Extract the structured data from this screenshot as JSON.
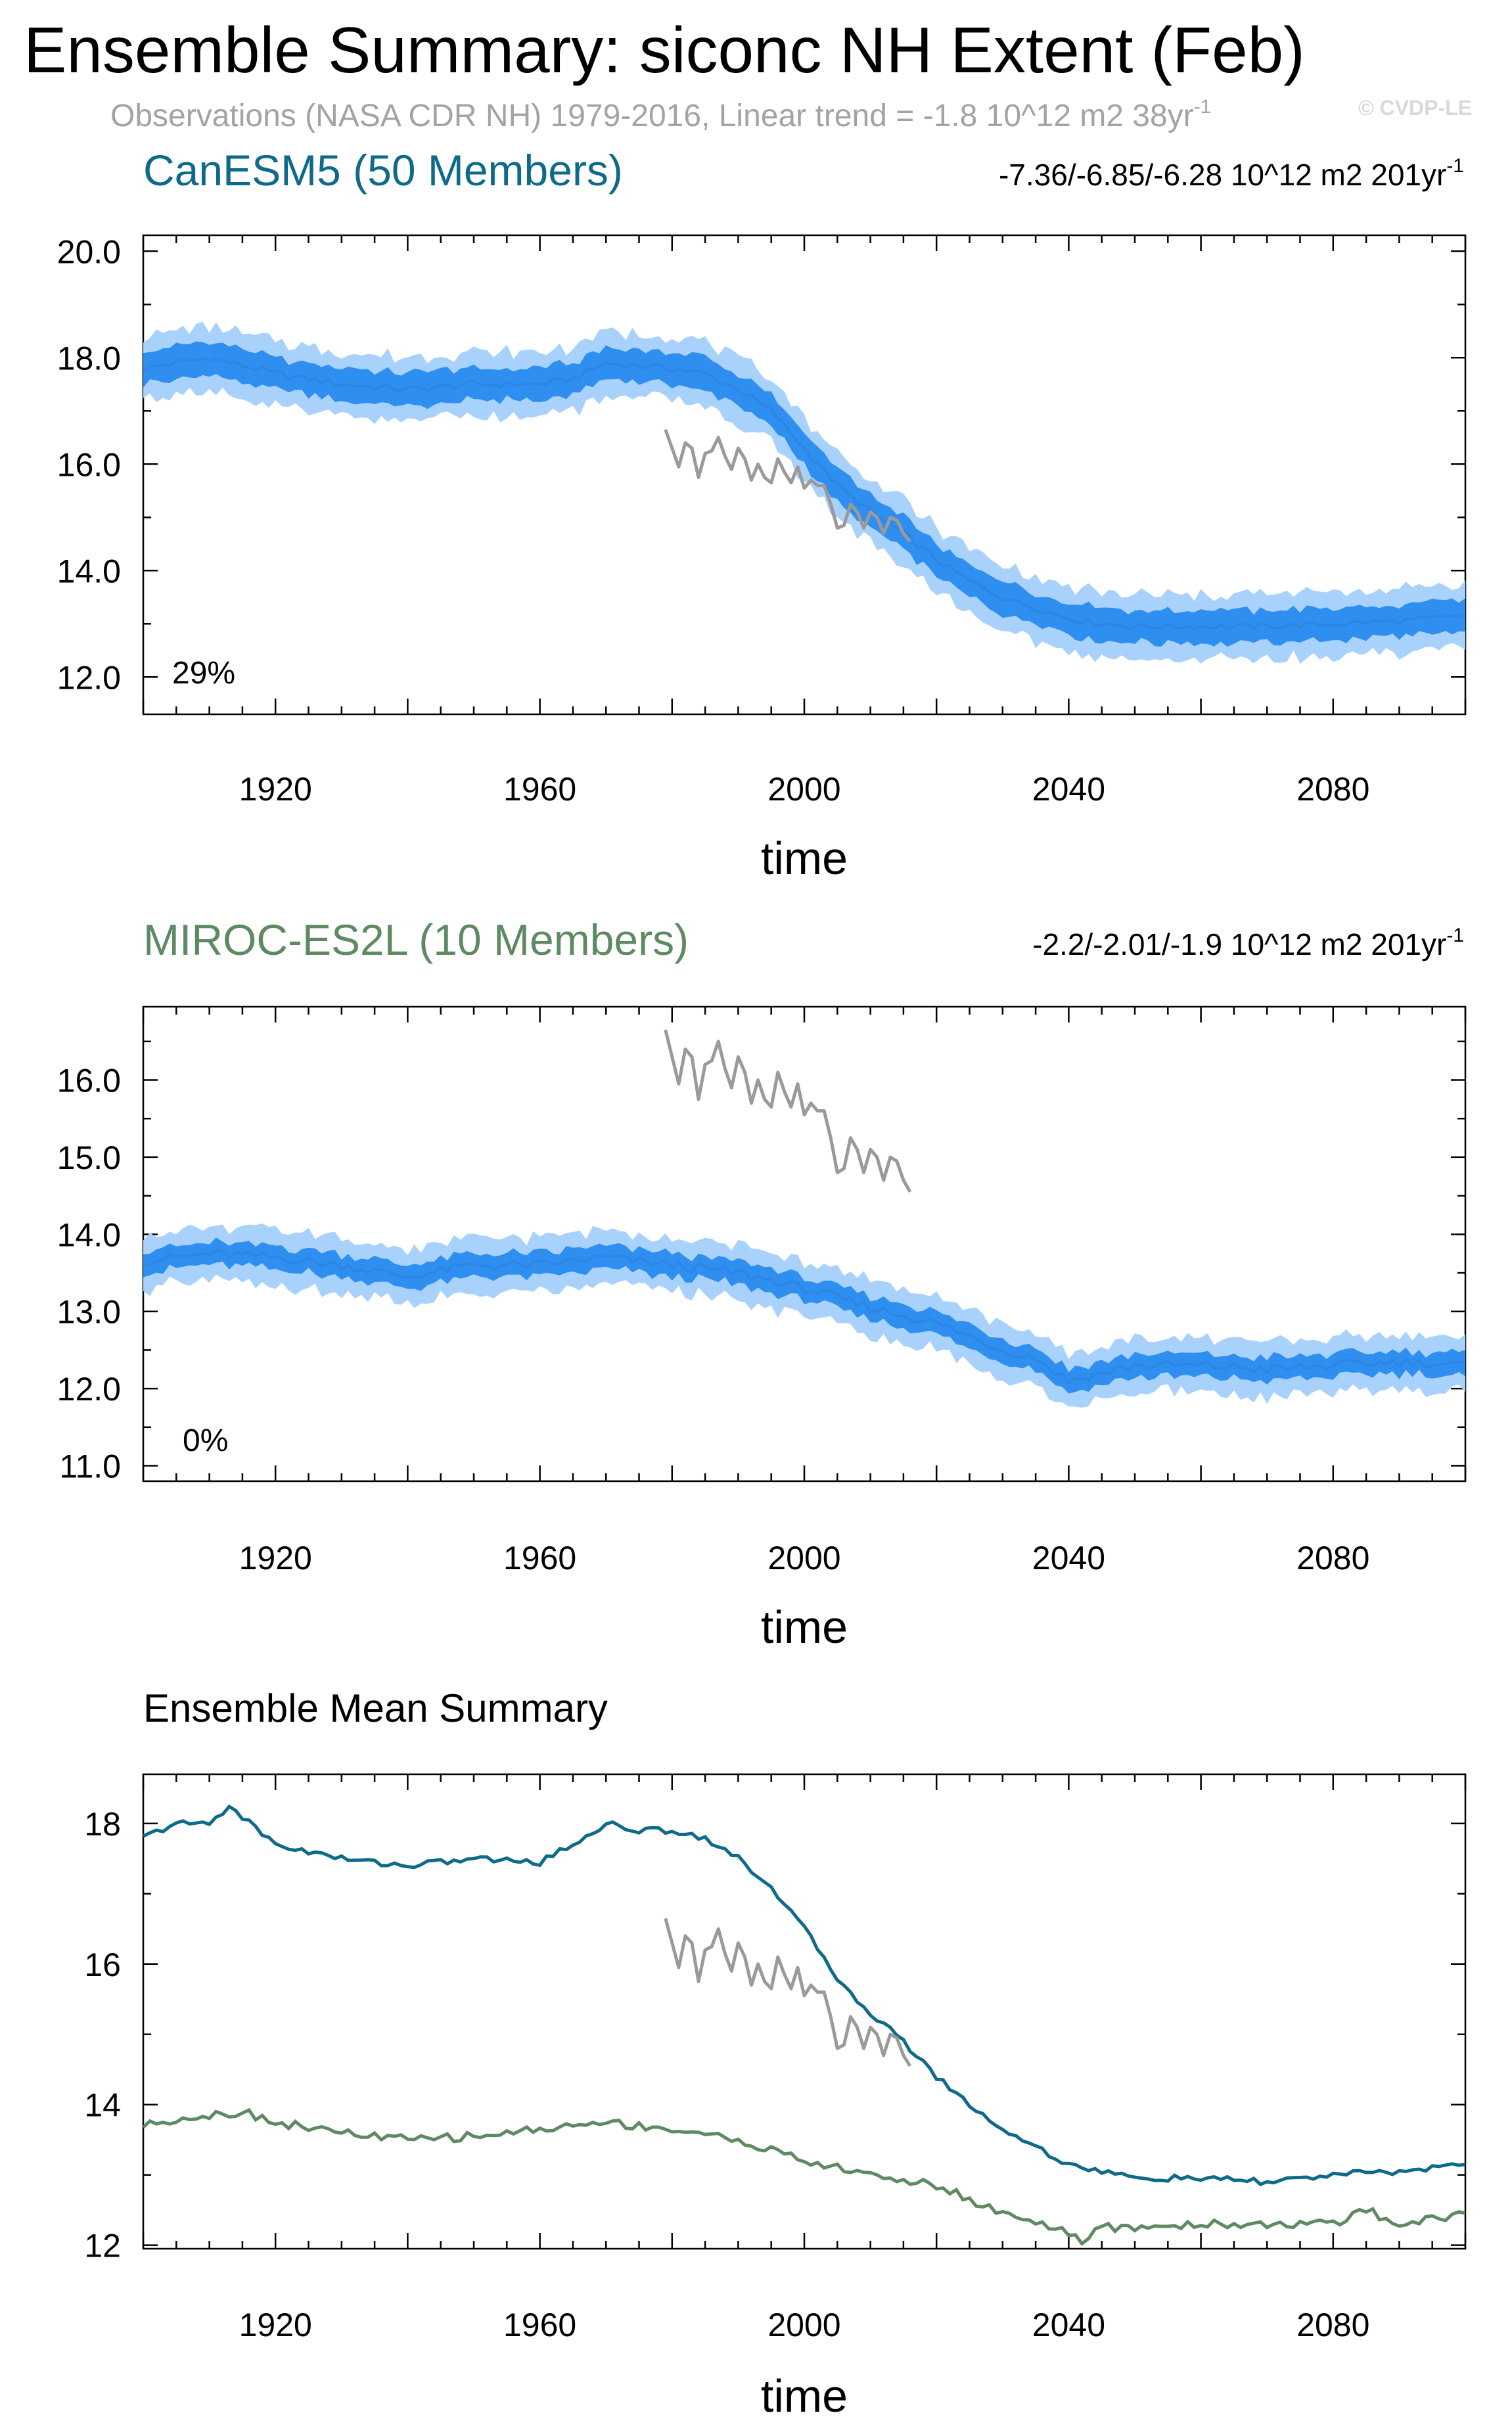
{
  "title": "Ensemble Summary: siconc NH Extent (Feb)",
  "subtitle": "Observations (NASA CDR NH) 1979-2016, Linear trend = -1.8 10^12 m2 38yr",
  "subtitle_sup": "-1",
  "watermark": "© CVDP-LE",
  "colors": {
    "canesm": "#0e6a8a",
    "miroc": "#5e8a62",
    "observations": "#9a9a9a",
    "band_outer": "#a8d2fb",
    "band_inner": "#2f8ff0",
    "ensemble_mean_line": "#2c86e6"
  },
  "panels": [
    {
      "header_left": "CanESM5 (50 Members)",
      "header_right": "-7.36/-6.85/-6.28 10^12 m2 201yr",
      "header_right_sup": "-1",
      "percent_label": "29%",
      "xlabel": "time"
    },
    {
      "header_left": "MIROC-ES2L (10 Members)",
      "header_right": "-2.2/-2.01/-1.9 10^12 m2 201yr",
      "header_right_sup": "-1",
      "percent_label": "0%",
      "xlabel": "time"
    },
    {
      "header_left": "Ensemble Mean Summary",
      "xlabel": "time"
    }
  ],
  "chart_data": [
    {
      "type": "line",
      "title": "CanESM5 (50 Members)",
      "xlabel": "time",
      "ylabel": "",
      "xlim": [
        1900,
        2100
      ],
      "ylim": [
        11.3,
        20.3
      ],
      "xticks": [
        1920,
        1960,
        2000,
        2040,
        2080
      ],
      "yticks": [
        12.0,
        14.0,
        16.0,
        18.0,
        20.0
      ],
      "ytick_labels": [
        "12.0",
        "14.0",
        "16.0",
        "18.0",
        "20.0"
      ],
      "grid": false,
      "series": [
        {
          "role": "ensemble_mean",
          "x": [
            1900,
            1910,
            1920,
            1930,
            1940,
            1950,
            1960,
            1965,
            1970,
            1980,
            1985,
            1990,
            1995,
            2000,
            2005,
            2010,
            2015,
            2020,
            2025,
            2030,
            2035,
            2040,
            2045,
            2050,
            2060,
            2070,
            2080,
            2090,
            2100
          ],
          "y": [
            17.8,
            18.0,
            17.7,
            17.5,
            17.4,
            17.5,
            17.5,
            17.6,
            17.9,
            17.8,
            17.7,
            17.4,
            17.0,
            16.3,
            15.6,
            15.1,
            14.7,
            14.2,
            13.8,
            13.5,
            13.3,
            13.1,
            13.0,
            12.95,
            12.95,
            12.95,
            13.0,
            13.05,
            13.15
          ],
          "spread_inner": 0.3,
          "spread_outer": 0.6
        },
        {
          "name": "Observations (NASA CDR NH)",
          "role": "observations",
          "x": [
            1979,
            1980,
            1981,
            1982,
            1983,
            1984,
            1985,
            1986,
            1987,
            1988,
            1989,
            1990,
            1991,
            1992,
            1993,
            1994,
            1995,
            1996,
            1997,
            1998,
            1999,
            2000,
            2001,
            2002,
            2003,
            2004,
            2005,
            2006,
            2007,
            2008,
            2009,
            2010,
            2011,
            2012,
            2013,
            2014,
            2015,
            2016
          ],
          "y": [
            16.65,
            16.3,
            15.95,
            16.4,
            16.3,
            15.75,
            16.2,
            16.25,
            16.5,
            16.15,
            15.9,
            16.3,
            16.1,
            15.7,
            16.0,
            15.75,
            15.65,
            16.1,
            15.85,
            15.65,
            15.95,
            15.55,
            15.7,
            15.6,
            15.6,
            15.25,
            14.8,
            14.85,
            15.25,
            15.1,
            14.8,
            15.1,
            15.0,
            14.7,
            15.0,
            14.95,
            14.7,
            14.55
          ]
        }
      ]
    },
    {
      "type": "line",
      "title": "MIROC-ES2L (10 Members)",
      "xlabel": "time",
      "ylabel": "",
      "xlim": [
        1900,
        2100
      ],
      "ylim": [
        10.8,
        16.95
      ],
      "xticks": [
        1920,
        1960,
        2000,
        2040,
        2080
      ],
      "yticks": [
        11.0,
        12.0,
        13.0,
        14.0,
        15.0,
        16.0
      ],
      "ytick_labels": [
        "11.0",
        "12.0",
        "13.0",
        "14.0",
        "15.0",
        "16.0"
      ],
      "grid": false,
      "series": [
        {
          "role": "ensemble_mean",
          "x": [
            1900,
            1910,
            1920,
            1930,
            1940,
            1950,
            1960,
            1970,
            1980,
            1990,
            2000,
            2010,
            2020,
            2030,
            2035,
            2040,
            2045,
            2050,
            2060,
            2070,
            2080,
            2090,
            2100
          ],
          "y": [
            13.65,
            13.75,
            13.7,
            13.6,
            13.45,
            13.6,
            13.6,
            13.7,
            13.6,
            13.5,
            13.3,
            13.05,
            12.85,
            12.5,
            12.4,
            12.1,
            12.2,
            12.3,
            12.3,
            12.25,
            12.3,
            12.35,
            12.3
          ],
          "spread_inner": 0.15,
          "spread_outer": 0.35
        },
        {
          "name": "Observations (NASA CDR NH)",
          "role": "observations",
          "x": [
            1979,
            1980,
            1981,
            1982,
            1983,
            1984,
            1985,
            1986,
            1987,
            1988,
            1989,
            1990,
            1991,
            1992,
            1993,
            1994,
            1995,
            1996,
            1997,
            1998,
            1999,
            2000,
            2001,
            2002,
            2003,
            2004,
            2005,
            2006,
            2007,
            2008,
            2009,
            2010,
            2011,
            2012,
            2013,
            2014,
            2015,
            2016
          ],
          "y": [
            16.65,
            16.3,
            15.95,
            16.4,
            16.3,
            15.75,
            16.2,
            16.25,
            16.5,
            16.15,
            15.9,
            16.3,
            16.1,
            15.7,
            16.0,
            15.75,
            15.65,
            16.1,
            15.85,
            15.65,
            15.95,
            15.55,
            15.7,
            15.6,
            15.6,
            15.25,
            14.8,
            14.85,
            15.25,
            15.1,
            14.8,
            15.1,
            15.0,
            14.7,
            15.0,
            14.95,
            14.7,
            14.55
          ]
        }
      ]
    },
    {
      "type": "line",
      "title": "Ensemble Mean Summary",
      "xlabel": "time",
      "ylabel": "",
      "xlim": [
        1900,
        2100
      ],
      "ylim": [
        11.95,
        18.7
      ],
      "xticks": [
        1920,
        1960,
        2000,
        2040,
        2080
      ],
      "yticks": [
        12,
        14,
        16,
        18
      ],
      "ytick_labels": [
        "12",
        "14",
        "16",
        "18"
      ],
      "grid": false,
      "series": [
        {
          "role": "canesm_mean",
          "x": [
            1900,
            1905,
            1910,
            1913,
            1920,
            1930,
            1940,
            1950,
            1960,
            1965,
            1970,
            1975,
            1980,
            1985,
            1990,
            1995,
            2000,
            2005,
            2010,
            2015,
            2020,
            2025,
            2030,
            2035,
            2040,
            2045,
            2050,
            2060,
            2070,
            2080,
            2090,
            2100
          ],
          "y": [
            17.8,
            18.0,
            18.0,
            18.25,
            17.7,
            17.5,
            17.4,
            17.5,
            17.45,
            17.7,
            18.0,
            17.9,
            17.9,
            17.8,
            17.5,
            17.1,
            16.5,
            15.8,
            15.3,
            14.9,
            14.4,
            14.0,
            13.65,
            13.4,
            13.15,
            13.05,
            12.95,
            12.95,
            12.9,
            13.0,
            13.05,
            13.15
          ]
        },
        {
          "role": "miroc_mean",
          "x": [
            1900,
            1905,
            1910,
            1915,
            1920,
            1930,
            1940,
            1950,
            1960,
            1970,
            1980,
            1990,
            2000,
            2010,
            2020,
            2030,
            2035,
            2040,
            2042,
            2045,
            2050,
            2060,
            2070,
            2080,
            2085,
            2090,
            2100
          ],
          "y": [
            13.7,
            13.8,
            13.85,
            13.9,
            13.75,
            13.6,
            13.5,
            13.55,
            13.65,
            13.75,
            13.65,
            13.5,
            13.2,
            13.0,
            12.85,
            12.45,
            12.35,
            12.15,
            12.05,
            12.25,
            12.25,
            12.3,
            12.3,
            12.3,
            12.5,
            12.3,
            12.45
          ]
        },
        {
          "name": "Observations (NASA CDR NH)",
          "role": "observations",
          "x": [
            1979,
            1980,
            1981,
            1982,
            1983,
            1984,
            1985,
            1986,
            1987,
            1988,
            1989,
            1990,
            1991,
            1992,
            1993,
            1994,
            1995,
            1996,
            1997,
            1998,
            1999,
            2000,
            2001,
            2002,
            2003,
            2004,
            2005,
            2006,
            2007,
            2008,
            2009,
            2010,
            2011,
            2012,
            2013,
            2014,
            2015,
            2016
          ],
          "y": [
            16.65,
            16.3,
            15.95,
            16.4,
            16.3,
            15.75,
            16.2,
            16.25,
            16.5,
            16.15,
            15.9,
            16.3,
            16.1,
            15.7,
            16.0,
            15.75,
            15.65,
            16.1,
            15.85,
            15.65,
            15.95,
            15.55,
            15.7,
            15.6,
            15.6,
            15.25,
            14.8,
            14.85,
            15.25,
            15.1,
            14.8,
            15.1,
            15.0,
            14.7,
            15.0,
            14.95,
            14.7,
            14.55
          ]
        }
      ]
    }
  ]
}
